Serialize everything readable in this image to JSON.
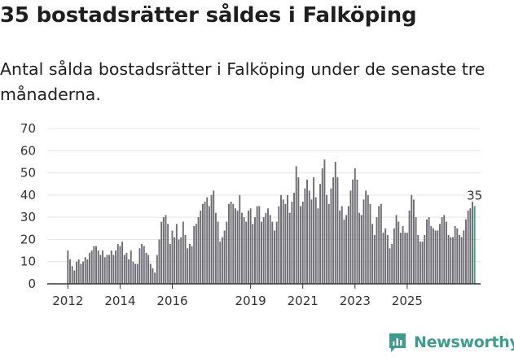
{
  "header": {
    "title": "35 bostadsrätter såldes i Falköping",
    "subtitle": "Antal sålda bostadsrätter i Falköping under de senaste tre månaderna."
  },
  "brand": {
    "name": "Newsworthy",
    "color": "#3d9c8b"
  },
  "chart_data": {
    "type": "bar",
    "title": "35 bostadsrätter såldes i Falköping",
    "subtitle": "Antal sålda bostadsrätter i Falköping under de senaste tre månaderna.",
    "xlabel": "",
    "ylabel": "",
    "ylim": [
      0,
      70
    ],
    "yticks": [
      0,
      10,
      20,
      30,
      40,
      50,
      60,
      70
    ],
    "xticks": [
      "2012",
      "2014",
      "2016",
      "2019",
      "2021",
      "2023",
      "2025"
    ],
    "grid": true,
    "colors": {
      "bar": "#6e6d74",
      "highlight": "#3d9c8b",
      "grid": "#e3e3e3",
      "axis": "#333333"
    },
    "highlight_label": "35",
    "series": [
      {
        "name": "Sålda bostadsrätter",
        "start": "2012-01",
        "frequency": "monthly",
        "values": [
          15,
          11,
          8,
          6,
          10,
          11,
          9,
          10,
          12,
          11,
          14,
          15,
          17,
          17,
          15,
          13,
          15,
          12,
          13,
          13,
          15,
          13,
          15,
          18,
          17,
          19,
          13,
          14,
          11,
          15,
          10,
          9,
          9,
          16,
          18,
          17,
          14,
          13,
          9,
          7,
          5,
          13,
          20,
          28,
          30,
          31,
          27,
          18,
          24,
          21,
          27,
          20,
          21,
          28,
          22,
          16,
          18,
          17,
          26,
          27,
          30,
          33,
          36,
          37,
          39,
          35,
          40,
          42,
          32,
          28,
          19,
          21,
          24,
          28,
          36,
          37,
          36,
          34,
          33,
          40,
          32,
          30,
          28,
          33,
          34,
          27,
          30,
          35,
          35,
          28,
          30,
          32,
          34,
          31,
          28,
          24,
          28,
          35,
          40,
          38,
          36,
          40,
          32,
          37,
          41,
          53,
          48,
          35,
          37,
          43,
          47,
          42,
          38,
          48,
          39,
          34,
          45,
          52,
          56,
          40,
          36,
          43,
          48,
          55,
          48,
          33,
          35,
          29,
          31,
          35,
          42,
          47,
          52,
          47,
          32,
          31,
          38,
          42,
          40,
          36,
          27,
          22,
          30,
          35,
          36,
          23,
          25,
          22,
          16,
          18,
          25,
          31,
          28,
          23,
          26,
          23,
          23,
          33,
          40,
          38,
          30,
          22,
          19,
          19,
          22,
          29,
          30,
          26,
          25,
          24,
          24,
          27,
          30,
          31,
          28,
          22,
          21,
          21,
          26,
          25,
          22,
          21,
          24,
          29,
          33,
          34,
          37,
          35
        ]
      }
    ]
  }
}
